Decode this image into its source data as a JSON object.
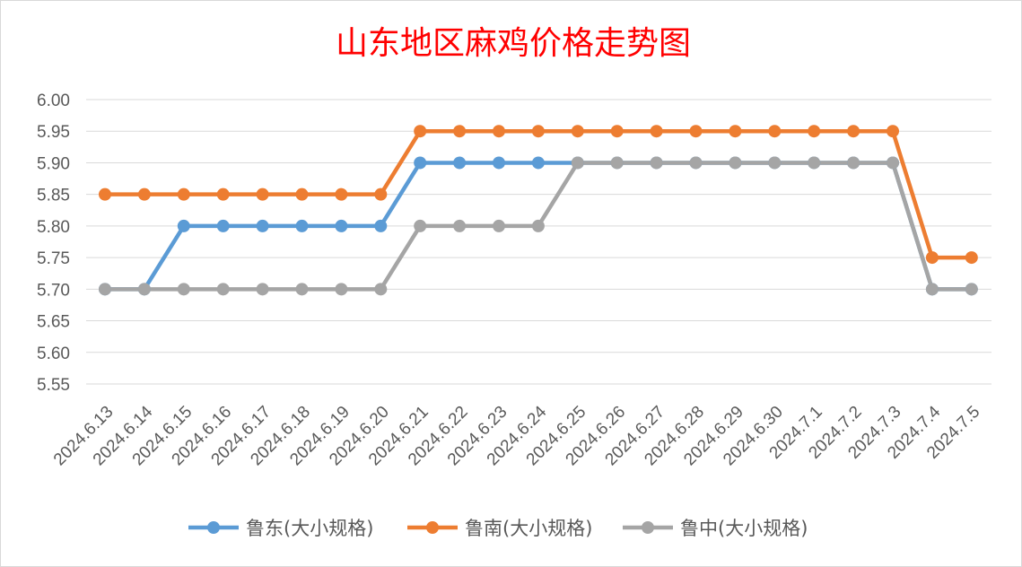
{
  "chart_data": {
    "type": "line",
    "title": "山东地区麻鸡价格走势图",
    "xlabel": "",
    "ylabel": "",
    "categories": [
      "2024.6.13",
      "2024.6.14",
      "2024.6.15",
      "2024.6.16",
      "2024.6.17",
      "2024.6.18",
      "2024.6.19",
      "2024.6.20",
      "2024.6.21",
      "2024.6.22",
      "2024.6.23",
      "2024.6.24",
      "2024.6.25",
      "2024.6.26",
      "2024.6.27",
      "2024.6.28",
      "2024.6.29",
      "2024.6.30",
      "2024.7.1",
      "2024.7.2",
      "2024.7.3",
      "2024.7.4",
      "2024.7.5"
    ],
    "ylim": [
      5.55,
      6.0
    ],
    "yticks": [
      "5.55",
      "5.60",
      "5.65",
      "5.70",
      "5.75",
      "5.80",
      "5.85",
      "5.90",
      "5.95",
      "6.00"
    ],
    "grid": true,
    "legend_position": "bottom",
    "series": [
      {
        "name": "鲁东(大小规格)",
        "color": "#5b9bd5",
        "values": [
          5.7,
          5.7,
          5.8,
          5.8,
          5.8,
          5.8,
          5.8,
          5.8,
          5.9,
          5.9,
          5.9,
          5.9,
          5.9,
          5.9,
          5.9,
          5.9,
          5.9,
          5.9,
          5.9,
          5.9,
          5.9,
          5.7,
          5.7
        ]
      },
      {
        "name": "鲁南(大小规格)",
        "color": "#ed7d31",
        "values": [
          5.85,
          5.85,
          5.85,
          5.85,
          5.85,
          5.85,
          5.85,
          5.85,
          5.95,
          5.95,
          5.95,
          5.95,
          5.95,
          5.95,
          5.95,
          5.95,
          5.95,
          5.95,
          5.95,
          5.95,
          5.95,
          5.75,
          5.75
        ]
      },
      {
        "name": "鲁中(大小规格)",
        "color": "#a5a5a5",
        "values": [
          5.7,
          5.7,
          5.7,
          5.7,
          5.7,
          5.7,
          5.7,
          5.7,
          5.8,
          5.8,
          5.8,
          5.8,
          5.9,
          5.9,
          5.9,
          5.9,
          5.9,
          5.9,
          5.9,
          5.9,
          5.9,
          5.7,
          5.7
        ]
      }
    ]
  }
}
